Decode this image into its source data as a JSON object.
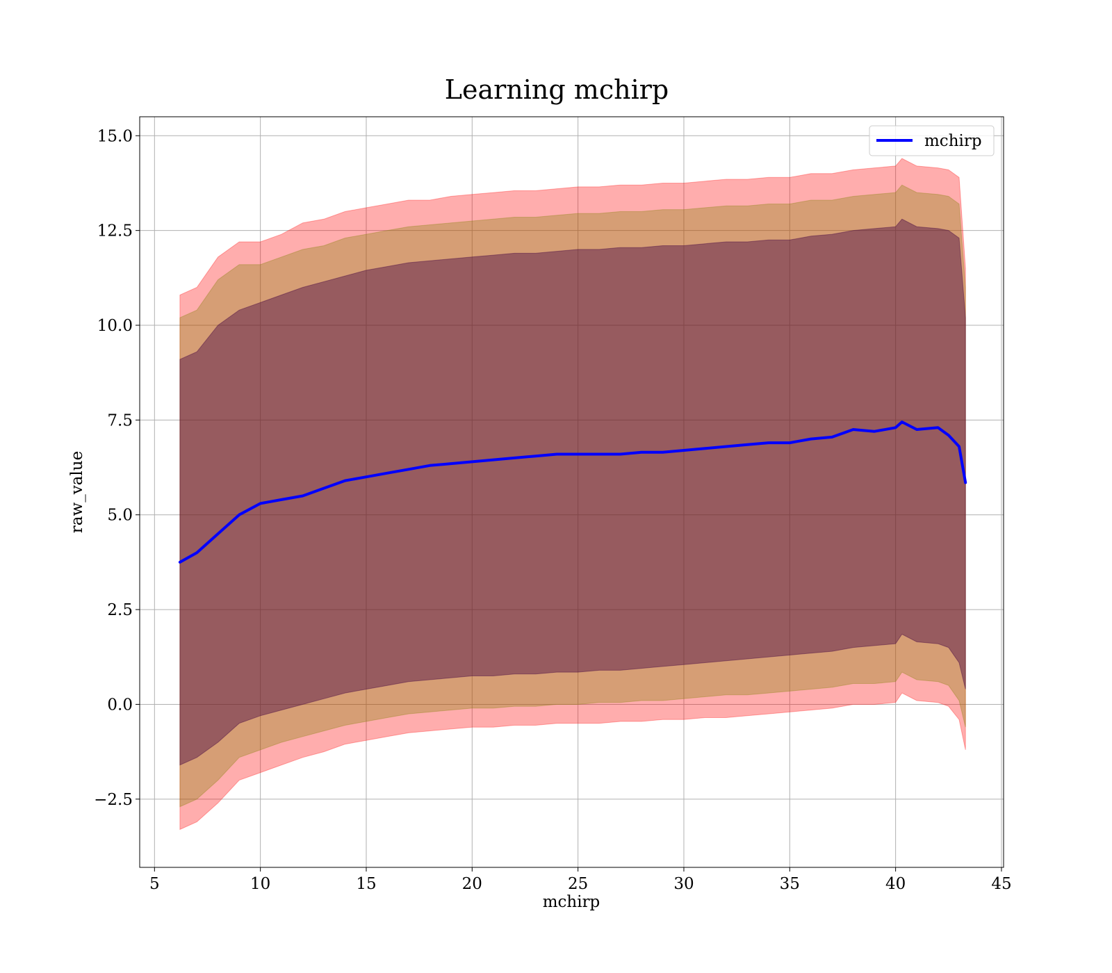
{
  "chart_data": {
    "type": "line",
    "title": "Learning mchirp",
    "xlabel": "mchirp",
    "ylabel": "raw_value",
    "xlim": [
      4.3,
      45.1
    ],
    "ylim": [
      -4.3,
      15.5
    ],
    "grid": true,
    "legend_position": "top-right",
    "x_ticks": [
      5,
      10,
      15,
      20,
      25,
      30,
      35,
      40,
      45
    ],
    "x_tick_labels": [
      "5",
      "10",
      "15",
      "20",
      "25",
      "30",
      "35",
      "40",
      "45"
    ],
    "y_ticks": [
      -2.5,
      0.0,
      2.5,
      5.0,
      7.5,
      10.0,
      12.5,
      15.0
    ],
    "y_tick_labels": [
      "−2.5",
      "0.0",
      "2.5",
      "5.0",
      "7.5",
      "10.0",
      "12.5",
      "15.0"
    ],
    "x": [
      6.2,
      7,
      8,
      9,
      10,
      11,
      12,
      13,
      14,
      15,
      16,
      17,
      18,
      19,
      20,
      21,
      22,
      23,
      24,
      25,
      26,
      27,
      28,
      29,
      30,
      31,
      32,
      33,
      34,
      35,
      36,
      37,
      38,
      39,
      40,
      40.3,
      41,
      42,
      42.5,
      43,
      43.3
    ],
    "series": [
      {
        "name": "mchirp",
        "color": "#0000ff",
        "values": [
          3.75,
          4.0,
          4.5,
          5.0,
          5.3,
          5.4,
          5.5,
          5.7,
          5.9,
          6.0,
          6.1,
          6.2,
          6.3,
          6.35,
          6.4,
          6.45,
          6.5,
          6.55,
          6.6,
          6.6,
          6.6,
          6.6,
          6.65,
          6.65,
          6.7,
          6.75,
          6.8,
          6.85,
          6.9,
          6.9,
          7.0,
          7.05,
          7.25,
          7.2,
          7.3,
          7.45,
          7.25,
          7.3,
          7.1,
          6.8,
          5.85
        ]
      }
    ],
    "bands": [
      {
        "color": "#ff0000",
        "opacity": 0.32,
        "upper": [
          10.8,
          11.0,
          11.8,
          12.2,
          12.2,
          12.4,
          12.7,
          12.8,
          13.0,
          13.1,
          13.2,
          13.3,
          13.3,
          13.4,
          13.45,
          13.5,
          13.55,
          13.55,
          13.6,
          13.65,
          13.65,
          13.7,
          13.7,
          13.75,
          13.75,
          13.8,
          13.85,
          13.85,
          13.9,
          13.9,
          14.0,
          14.0,
          14.1,
          14.15,
          14.2,
          14.4,
          14.2,
          14.15,
          14.1,
          13.9,
          11.5
        ],
        "lower": [
          -3.3,
          -3.1,
          -2.6,
          -2.0,
          -1.8,
          -1.6,
          -1.4,
          -1.25,
          -1.05,
          -0.95,
          -0.85,
          -0.75,
          -0.7,
          -0.65,
          -0.6,
          -0.6,
          -0.55,
          -0.55,
          -0.5,
          -0.5,
          -0.5,
          -0.45,
          -0.45,
          -0.4,
          -0.4,
          -0.35,
          -0.35,
          -0.3,
          -0.25,
          -0.2,
          -0.15,
          -0.1,
          0.0,
          0.0,
          0.05,
          0.3,
          0.1,
          0.05,
          -0.05,
          -0.4,
          -1.2
        ]
      },
      {
        "color": "#808000",
        "opacity": 0.32,
        "upper": [
          10.2,
          10.4,
          11.2,
          11.6,
          11.6,
          11.8,
          12.0,
          12.1,
          12.3,
          12.4,
          12.5,
          12.6,
          12.65,
          12.7,
          12.75,
          12.8,
          12.85,
          12.85,
          12.9,
          12.95,
          12.95,
          13.0,
          13.0,
          13.05,
          13.05,
          13.1,
          13.15,
          13.15,
          13.2,
          13.2,
          13.3,
          13.3,
          13.4,
          13.45,
          13.5,
          13.7,
          13.5,
          13.45,
          13.4,
          13.2,
          11.0
        ],
        "lower": [
          -2.7,
          -2.5,
          -2.0,
          -1.4,
          -1.2,
          -1.0,
          -0.85,
          -0.7,
          -0.55,
          -0.45,
          -0.35,
          -0.25,
          -0.2,
          -0.15,
          -0.1,
          -0.1,
          -0.05,
          -0.05,
          0.0,
          0.0,
          0.05,
          0.05,
          0.1,
          0.1,
          0.15,
          0.2,
          0.25,
          0.25,
          0.3,
          0.35,
          0.4,
          0.45,
          0.55,
          0.55,
          0.6,
          0.85,
          0.65,
          0.6,
          0.5,
          0.1,
          -0.6
        ]
      },
      {
        "color": "#400040",
        "opacity": 0.42,
        "upper": [
          9.1,
          9.3,
          10.0,
          10.4,
          10.6,
          10.8,
          11.0,
          11.15,
          11.3,
          11.45,
          11.55,
          11.65,
          11.7,
          11.75,
          11.8,
          11.85,
          11.9,
          11.9,
          11.95,
          12.0,
          12.0,
          12.05,
          12.05,
          12.1,
          12.1,
          12.15,
          12.2,
          12.2,
          12.25,
          12.25,
          12.35,
          12.4,
          12.5,
          12.55,
          12.6,
          12.8,
          12.6,
          12.55,
          12.5,
          12.3,
          10.2
        ],
        "lower": [
          -1.6,
          -1.4,
          -1.0,
          -0.5,
          -0.3,
          -0.15,
          0.0,
          0.15,
          0.3,
          0.4,
          0.5,
          0.6,
          0.65,
          0.7,
          0.75,
          0.75,
          0.8,
          0.8,
          0.85,
          0.85,
          0.9,
          0.9,
          0.95,
          1.0,
          1.05,
          1.1,
          1.15,
          1.2,
          1.25,
          1.3,
          1.35,
          1.4,
          1.5,
          1.55,
          1.6,
          1.85,
          1.65,
          1.6,
          1.5,
          1.1,
          0.4
        ]
      }
    ]
  }
}
